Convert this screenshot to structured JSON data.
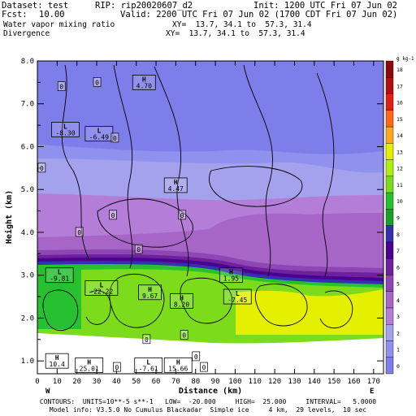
{
  "header": {
    "dataset": "Dataset: test",
    "rip": "RIP: rip20020607_d2",
    "init": "Init: 1200 UTC Fri 07 Jun 02",
    "fcst_label": "Fcst:",
    "fcst_value": "10.00",
    "valid": "Valid: 2200 UTC Fri 07 Jun 02 (1700 CDT Fri 07 Jun 02)",
    "field1": "Water vapor mixing ratio",
    "field1_xy": "XY=  13.7, 34.1 to  57.3, 31.4",
    "field2": "Divergence",
    "field2_xy": "XY=  13.7, 34.1 to  57.3, 31.4"
  },
  "footer": {
    "line1": "CONTOURS:  UNITS=10**-5 s**-1   LOW=  -20.000     HIGH=  25.000     INTERVAL=   5.0000",
    "line2": "Model info: V3.5.0 No Cumulus Blackadar  Simple ice     4 km,  29 levels,  10 sec"
  },
  "chart_data": {
    "type": "cross-section",
    "xlabel": "Distance (km)",
    "ylabel": "Height (km)",
    "xlim": [
      0,
      175
    ],
    "ylim": [
      0.7,
      8.0
    ],
    "x_ticks": [
      0,
      10,
      20,
      30,
      40,
      50,
      60,
      70,
      80,
      90,
      100,
      110,
      120,
      130,
      140,
      150,
      160,
      170
    ],
    "y_ticks_major": [
      1.0,
      2.0,
      3.0,
      4.0,
      5.0,
      6.0,
      7.0,
      8.0
    ],
    "y_tick_labels": [
      "1.0",
      "2.0",
      "3.0",
      "4.0",
      "5.0",
      "6.0",
      "7.0",
      "8.0"
    ],
    "end_labels": {
      "left": "W",
      "right": "E"
    },
    "colorbar": {
      "unit": "g kg-1",
      "levels": [
        "0",
        "1",
        "2",
        "3",
        "4",
        "5",
        "6",
        "7",
        "8",
        "9",
        "10",
        "11",
        "12",
        "13",
        "14",
        "15",
        "16",
        "17",
        "18"
      ],
      "colors": [
        "#7e7eea",
        "#9090ee",
        "#a4a2ec",
        "#b47ed8",
        "#a766c7",
        "#8f46b5",
        "#6f209c",
        "#4a0090",
        "#3430b0",
        "#1aa028",
        "#26c030",
        "#7cdc1c",
        "#aef010",
        "#e4f000",
        "#ffa820",
        "#ff6818",
        "#e02010",
        "#b01010",
        "#8c0810"
      ]
    },
    "annotations": [
      {
        "type": "H",
        "value": "4.70",
        "x": 49,
        "y": 7.5
      },
      {
        "type": "L",
        "value": "-8.30",
        "x": 8,
        "y": 6.4
      },
      {
        "type": "L",
        "value": "-6.49",
        "x": 25,
        "y": 6.3
      },
      {
        "type": "H",
        "value": "4.47",
        "x": 65,
        "y": 5.1
      },
      {
        "type": "L",
        "value": "-9.81",
        "x": 5,
        "y": 3.0
      },
      {
        "type": "L",
        "value": "-22.22",
        "x": 25,
        "y": 2.7
      },
      {
        "type": "H",
        "value": "9.67",
        "x": 52,
        "y": 2.6
      },
      {
        "type": "H",
        "value": "8.20",
        "x": 68,
        "y": 2.4
      },
      {
        "type": "H",
        "value": "1.95",
        "x": 93,
        "y": 3.0
      },
      {
        "type": "L",
        "value": "-7.45",
        "x": 95,
        "y": 2.5
      },
      {
        "type": "H",
        "value": "10.4",
        "x": 5,
        "y": 1.0
      },
      {
        "type": "H",
        "value": "25.01",
        "x": 20,
        "y": 0.9
      },
      {
        "type": "L",
        "value": "-7.61",
        "x": 50,
        "y": 0.9
      },
      {
        "type": "H",
        "value": "15.66",
        "x": 65,
        "y": 0.9
      }
    ],
    "zero_labels": [
      {
        "value": "0",
        "x": 12,
        "y": 7.4
      },
      {
        "value": "0",
        "x": 30,
        "y": 7.5
      },
      {
        "value": "0",
        "x": 39,
        "y": 6.2
      },
      {
        "value": "0",
        "x": 2,
        "y": 5.5
      },
      {
        "value": "0",
        "x": 38,
        "y": 4.4
      },
      {
        "value": "0",
        "x": 21,
        "y": 4.0
      },
      {
        "value": "0",
        "x": 73,
        "y": 4.4
      },
      {
        "value": "0",
        "x": 51,
        "y": 3.6
      },
      {
        "value": "0",
        "x": 40,
        "y": 0.85
      },
      {
        "value": "0",
        "x": 55,
        "y": 1.5
      },
      {
        "value": "0",
        "x": 74,
        "y": 1.6
      },
      {
        "value": "0",
        "x": 80,
        "y": 1.1
      },
      {
        "value": "0",
        "x": 84,
        "y": 0.85
      }
    ]
  }
}
